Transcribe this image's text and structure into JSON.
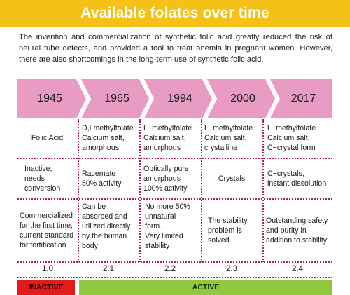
{
  "title": "Available folates over time",
  "intro": "The invention and commercialization of synthetic folic acid greatly reduced the risk of neural tube defects, and provided a tool to treat anemia in pregnant women. However, there are also shortcomings in the long-term use of synthetic folic acid.",
  "colors": {
    "banner": "#f6c116",
    "arrow": "#e89cc4",
    "divider": "#b51d5a",
    "inactive": "#e21b1b",
    "active": "#92c83e"
  },
  "years": [
    "1945",
    "1965",
    "1994",
    "2000",
    "2017"
  ],
  "forms": [
    [
      "Folic Acid"
    ],
    [
      "D,Lmethylfolate",
      "Calcium salt,",
      "amorphous"
    ],
    [
      "L−methylfolate",
      "Calcium salt,",
      "amorphous"
    ],
    [
      "L−methylfolate",
      "Calcium salt,",
      "crystalline"
    ],
    [
      "L−methylfolate",
      "Calcium salt,",
      "C−crystal form"
    ]
  ],
  "properties": [
    [
      "Inactive,",
      "needs",
      "conversion"
    ],
    [
      "Racemate",
      "50% activity"
    ],
    [
      "Optically pure",
      "amorphous",
      "100% activity"
    ],
    [
      "Crystals"
    ],
    [
      "C−crystals,",
      "instant dissolution"
    ]
  ],
  "notes": [
    [
      "Commercialized",
      "for the first time,",
      "current standard",
      "for fortification"
    ],
    [
      "Can be",
      "absorbed and",
      "utilized directly",
      "by the human",
      "body"
    ],
    [
      "No more 50%",
      "unnatural",
      "form.",
      "Very limited",
      "stability"
    ],
    [
      "The stability",
      "problem is",
      "solved"
    ],
    [
      "Outstanding safety",
      "and purity in",
      "addition to stability"
    ]
  ],
  "versions": [
    "1.0",
    "2.1",
    "2.2",
    "2.3",
    "2.4"
  ],
  "status": {
    "inactive": "INACTIVE",
    "active": "ACTIVE"
  }
}
